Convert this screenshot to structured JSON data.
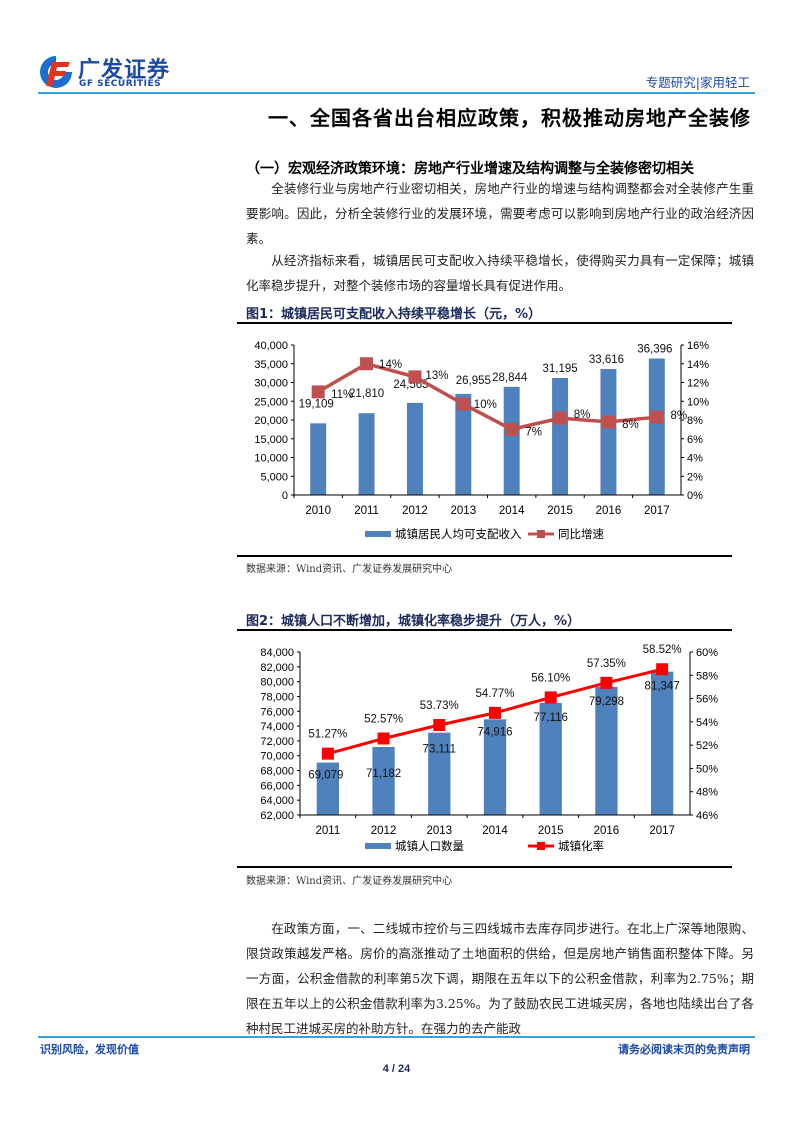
{
  "header": {
    "logo_cn": "广发证券",
    "logo_en": "GF SECURITIES",
    "tag": "专题研究|家用轻工",
    "colors": {
      "brand_blue": "#1a4aa8",
      "rule_blue": "#3aa0e0",
      "logo_red": "#e8321e"
    }
  },
  "section": {
    "title": "一、全国各省出台相应政策，积极推动房地产全装修",
    "subtitle": "（一）宏观经济政策环境：房地产行业增速及结构调整与全装修密切相关",
    "paragraphs": [
      "全装修行业与房地产行业密切相关，房地产行业的增速与结构调整都会对全装修产生重要影响。因此，分析全装修行业的发展环境，需要考虑可以影响到房地产行业的政治经济因素。",
      "从经济指标来看，城镇居民可支配收入持续平稳增长，使得购买力具有一定保障；城镇化率稳步提升，对整个装修市场的容量增长具有促进作用。"
    ],
    "closing_paragraph": "在政策方面，一、二线城市控价与三四线城市去库存同步进行。在北上广深等地限购、限贷政策越发严格。房价的高涨推动了土地面积的供给，但是房地产销售面积整体下降。另一方面，公积金借款的利率第5次下调，期限在五年以下的公积金借款，利率为2.75%；期限在五年以上的公积金借款利率为3.25%。为了鼓励农民工进城买房，各地也陆续出台了各种村民工进城买房的补助方针。在强力的去产能政"
  },
  "figures": [
    {
      "label": "图1：",
      "title": "城镇居民可支配收入持续平稳增长（元，%）",
      "source": "数据来源：Wind资讯、广发证券发展研究中心"
    },
    {
      "label": "图2：",
      "title": "城镇人口不断增加，城镇化率稳步提升（万人，%）",
      "source": "数据来源：Wind资讯、广发证券发展研究中心"
    }
  ],
  "chart_data": [
    {
      "type": "bar",
      "title": "城镇居民可支配收入持续平稳增长（元，%）",
      "categories": [
        "2010",
        "2011",
        "2012",
        "2013",
        "2014",
        "2015",
        "2016",
        "2017"
      ],
      "series": [
        {
          "name": "城镇居民人均可支配收入",
          "kind": "bar",
          "axis": "left",
          "color": "#4f81bd",
          "values": [
            19109,
            21810,
            24565,
            26955,
            28844,
            31195,
            33616,
            36396
          ],
          "labels": [
            "19,109",
            "21,810",
            "24,565",
            "26,955",
            "28,844",
            "31,195",
            "33,616",
            "36,396"
          ]
        },
        {
          "name": "同比增速",
          "kind": "line",
          "axis": "right",
          "color": "#c0504d",
          "values": [
            11,
            14,
            12.6,
            9.7,
            7,
            8.2,
            7.8,
            8.3
          ],
          "labels": [
            "11%",
            "14%",
            "13%",
            "10%",
            "7%",
            "8%",
            "8%",
            "8%"
          ]
        }
      ],
      "left_axis": {
        "min": 0,
        "max": 40000,
        "step": 5000,
        "ticks": [
          "0",
          "5,000",
          "10,000",
          "15,000",
          "20,000",
          "25,000",
          "30,000",
          "35,000",
          "40,000"
        ]
      },
      "right_axis": {
        "min": 0,
        "max": 16,
        "step": 2,
        "ticks": [
          "0%",
          "2%",
          "4%",
          "6%",
          "8%",
          "10%",
          "12%",
          "14%",
          "16%"
        ]
      },
      "xlabel": "",
      "ylabel": "",
      "grid": false,
      "legend_position": "bottom"
    },
    {
      "type": "bar",
      "title": "城镇人口不断增加，城镇化率稳步提升（万人，%）",
      "categories": [
        "2011",
        "2012",
        "2013",
        "2014",
        "2015",
        "2016",
        "2017"
      ],
      "series": [
        {
          "name": "城镇人口数量",
          "kind": "bar",
          "axis": "left",
          "color": "#4f81bd",
          "values": [
            69079,
            71182,
            73111,
            74916,
            77116,
            79298,
            81347
          ],
          "labels": [
            "69,079",
            "71,182",
            "73,111",
            "74,916",
            "77,116",
            "79,298",
            "81,347"
          ]
        },
        {
          "name": "城镇化率",
          "kind": "line",
          "axis": "right",
          "color": "#ff0000",
          "values": [
            51.27,
            52.57,
            53.73,
            54.77,
            56.1,
            57.35,
            58.52
          ],
          "labels": [
            "51.27%",
            "52.57%",
            "53.73%",
            "54.77%",
            "56.10%",
            "57.35%",
            "58.52%"
          ]
        }
      ],
      "left_axis": {
        "min": 62000,
        "max": 84000,
        "step": 2000,
        "ticks": [
          "62,000",
          "64,000",
          "66,000",
          "68,000",
          "70,000",
          "72,000",
          "74,000",
          "76,000",
          "78,000",
          "80,000",
          "82,000",
          "84,000"
        ]
      },
      "right_axis": {
        "min": 46,
        "max": 60,
        "step": 2,
        "ticks": [
          "46%",
          "48%",
          "50%",
          "52%",
          "54%",
          "56%",
          "58%",
          "60%"
        ]
      },
      "xlabel": "",
      "ylabel": "",
      "grid": false,
      "legend_position": "bottom"
    }
  ],
  "footer": {
    "left": "识别风险，发现价值",
    "right": "请务必阅读末页的免责声明",
    "page": "4 / 24"
  }
}
